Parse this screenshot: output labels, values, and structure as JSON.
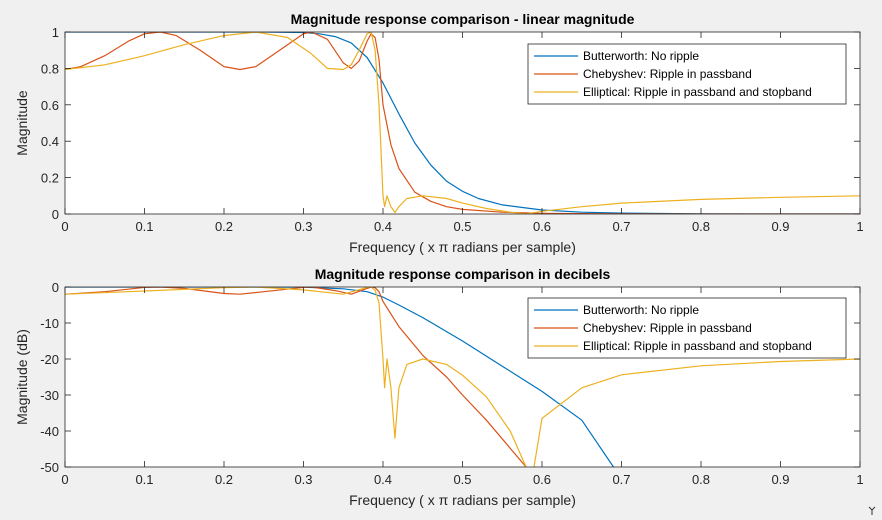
{
  "chart_data": [
    {
      "type": "line",
      "title": "Magnitude response comparison - linear magnitude",
      "xlabel": "Frequency ( x π radians per sample)",
      "ylabel": "Magnitude",
      "xlim": [
        0,
        1
      ],
      "ylim": [
        0,
        1
      ],
      "xticks": [
        0,
        0.1,
        0.2,
        0.3,
        0.4,
        0.5,
        0.6,
        0.7,
        0.8,
        0.9,
        1
      ],
      "xtick_labels": [
        "0",
        "0.1",
        "0.2",
        "0.3",
        "0.4",
        "0.5",
        "0.6",
        "0.7",
        "0.8",
        "0.9",
        "1"
      ],
      "yticks": [
        0,
        0.2,
        0.4,
        0.6,
        0.8,
        1
      ],
      "ytick_labels": [
        "0",
        "0.2",
        "0.4",
        "0.6",
        "0.8",
        "1"
      ],
      "grid": false,
      "legend_position": "top-right",
      "series": [
        {
          "name": "Butterworth: No ripple",
          "color": "#0072BD",
          "x": [
            0,
            0.1,
            0.2,
            0.25,
            0.3,
            0.32,
            0.34,
            0.36,
            0.38,
            0.4,
            0.42,
            0.44,
            0.46,
            0.48,
            0.5,
            0.52,
            0.55,
            0.6,
            0.65,
            0.7,
            0.8,
            0.9,
            1
          ],
          "y": [
            1,
            1,
            1,
            1,
            0.997,
            0.99,
            0.975,
            0.94,
            0.86,
            0.72,
            0.55,
            0.39,
            0.27,
            0.18,
            0.125,
            0.085,
            0.05,
            0.022,
            0.01,
            0.005,
            0.001,
            0,
            0
          ]
        },
        {
          "name": "Chebyshev: Ripple in passband",
          "color": "#D95319",
          "x": [
            0,
            0.02,
            0.05,
            0.08,
            0.1,
            0.12,
            0.14,
            0.17,
            0.2,
            0.22,
            0.24,
            0.27,
            0.3,
            0.31,
            0.33,
            0.35,
            0.36,
            0.37,
            0.38,
            0.385,
            0.39,
            0.395,
            0.4,
            0.41,
            0.42,
            0.44,
            0.46,
            0.48,
            0.5,
            0.55,
            0.6,
            0.7,
            0.8,
            1
          ],
          "y": [
            0.794,
            0.81,
            0.87,
            0.95,
            0.99,
            1.0,
            0.98,
            0.9,
            0.81,
            0.794,
            0.81,
            0.9,
            0.99,
            1.0,
            0.96,
            0.83,
            0.8,
            0.84,
            0.95,
            0.99,
            0.97,
            0.85,
            0.6,
            0.38,
            0.25,
            0.12,
            0.07,
            0.04,
            0.025,
            0.01,
            0.004,
            0.001,
            0,
            0
          ]
        },
        {
          "name": "Elliptical: Ripple in passband and stopband",
          "color": "#EDB120",
          "x": [
            0,
            0.05,
            0.1,
            0.15,
            0.2,
            0.24,
            0.28,
            0.31,
            0.33,
            0.35,
            0.36,
            0.37,
            0.38,
            0.385,
            0.39,
            0.395,
            0.4,
            0.402,
            0.405,
            0.41,
            0.415,
            0.42,
            0.43,
            0.45,
            0.48,
            0.5,
            0.53,
            0.56,
            0.58,
            0.6,
            0.65,
            0.7,
            0.8,
            0.9,
            1
          ],
          "y": [
            0.794,
            0.82,
            0.87,
            0.93,
            0.98,
            1.0,
            0.97,
            0.88,
            0.8,
            0.794,
            0.82,
            0.9,
            0.99,
            1.0,
            0.9,
            0.6,
            0.1,
            0.04,
            0.1,
            0.04,
            0.008,
            0.04,
            0.085,
            0.1,
            0.085,
            0.06,
            0.03,
            0.01,
            0.001,
            0.015,
            0.04,
            0.06,
            0.08,
            0.092,
            0.1
          ]
        }
      ]
    },
    {
      "type": "line",
      "title": "Magnitude response comparison in decibels",
      "xlabel": "Frequency ( x π radians per sample)",
      "ylabel": "Magnitude (dB)",
      "xlim": [
        0,
        1
      ],
      "ylim": [
        -50,
        0
      ],
      "xticks": [
        0,
        0.1,
        0.2,
        0.3,
        0.4,
        0.5,
        0.6,
        0.7,
        0.8,
        0.9,
        1
      ],
      "xtick_labels": [
        "0",
        "0.1",
        "0.2",
        "0.3",
        "0.4",
        "0.5",
        "0.6",
        "0.7",
        "0.8",
        "0.9",
        "1"
      ],
      "yticks": [
        -50,
        -40,
        -30,
        -20,
        -10,
        0
      ],
      "ytick_labels": [
        "-50",
        "-40",
        "-30",
        "-20",
        "-10",
        "0"
      ],
      "grid": false,
      "legend_position": "top-right",
      "series": [
        {
          "name": "Butterworth: No ripple",
          "color": "#0072BD",
          "x": [
            0,
            0.2,
            0.3,
            0.35,
            0.38,
            0.4,
            0.42,
            0.45,
            0.5,
            0.55,
            0.6,
            0.65,
            0.69
          ],
          "y": [
            0,
            0,
            -0.05,
            -0.5,
            -1.3,
            -2.8,
            -5,
            -8.5,
            -15,
            -22,
            -29,
            -37,
            -50
          ]
        },
        {
          "name": "Chebyshev: Ripple in passband",
          "color": "#D95319",
          "x": [
            0,
            0.05,
            0.1,
            0.12,
            0.15,
            0.2,
            0.22,
            0.25,
            0.3,
            0.31,
            0.34,
            0.36,
            0.38,
            0.385,
            0.39,
            0.395,
            0.4,
            0.42,
            0.45,
            0.48,
            0.5,
            0.53,
            0.58
          ],
          "y": [
            -2,
            -1.3,
            -0.1,
            0,
            -0.4,
            -1.8,
            -2,
            -1.3,
            -0.1,
            0,
            -1,
            -2,
            -0.4,
            0,
            -0.2,
            -1.3,
            -4,
            -11,
            -19,
            -25,
            -30,
            -37,
            -50
          ]
        },
        {
          "name": "Elliptical: Ripple in passband and stopband",
          "color": "#EDB120",
          "x": [
            0,
            0.1,
            0.2,
            0.24,
            0.3,
            0.35,
            0.38,
            0.385,
            0.39,
            0.395,
            0.4,
            0.402,
            0.405,
            0.41,
            0.415,
            0.42,
            0.43,
            0.45,
            0.48,
            0.5,
            0.53,
            0.56,
            0.58,
            0.585,
            0.59,
            0.6,
            0.65,
            0.7,
            0.8,
            0.9,
            1
          ],
          "y": [
            -2,
            -1.1,
            -0.2,
            0,
            -0.8,
            -2,
            -0.1,
            0,
            -0.9,
            -4.4,
            -20,
            -28,
            -20,
            -28,
            -42,
            -28,
            -21.5,
            -20,
            -21.5,
            -24.5,
            -30.5,
            -40,
            -50,
            -60,
            -50,
            -36.5,
            -28,
            -24.4,
            -21.9,
            -20.7,
            -20
          ]
        }
      ]
    }
  ]
}
